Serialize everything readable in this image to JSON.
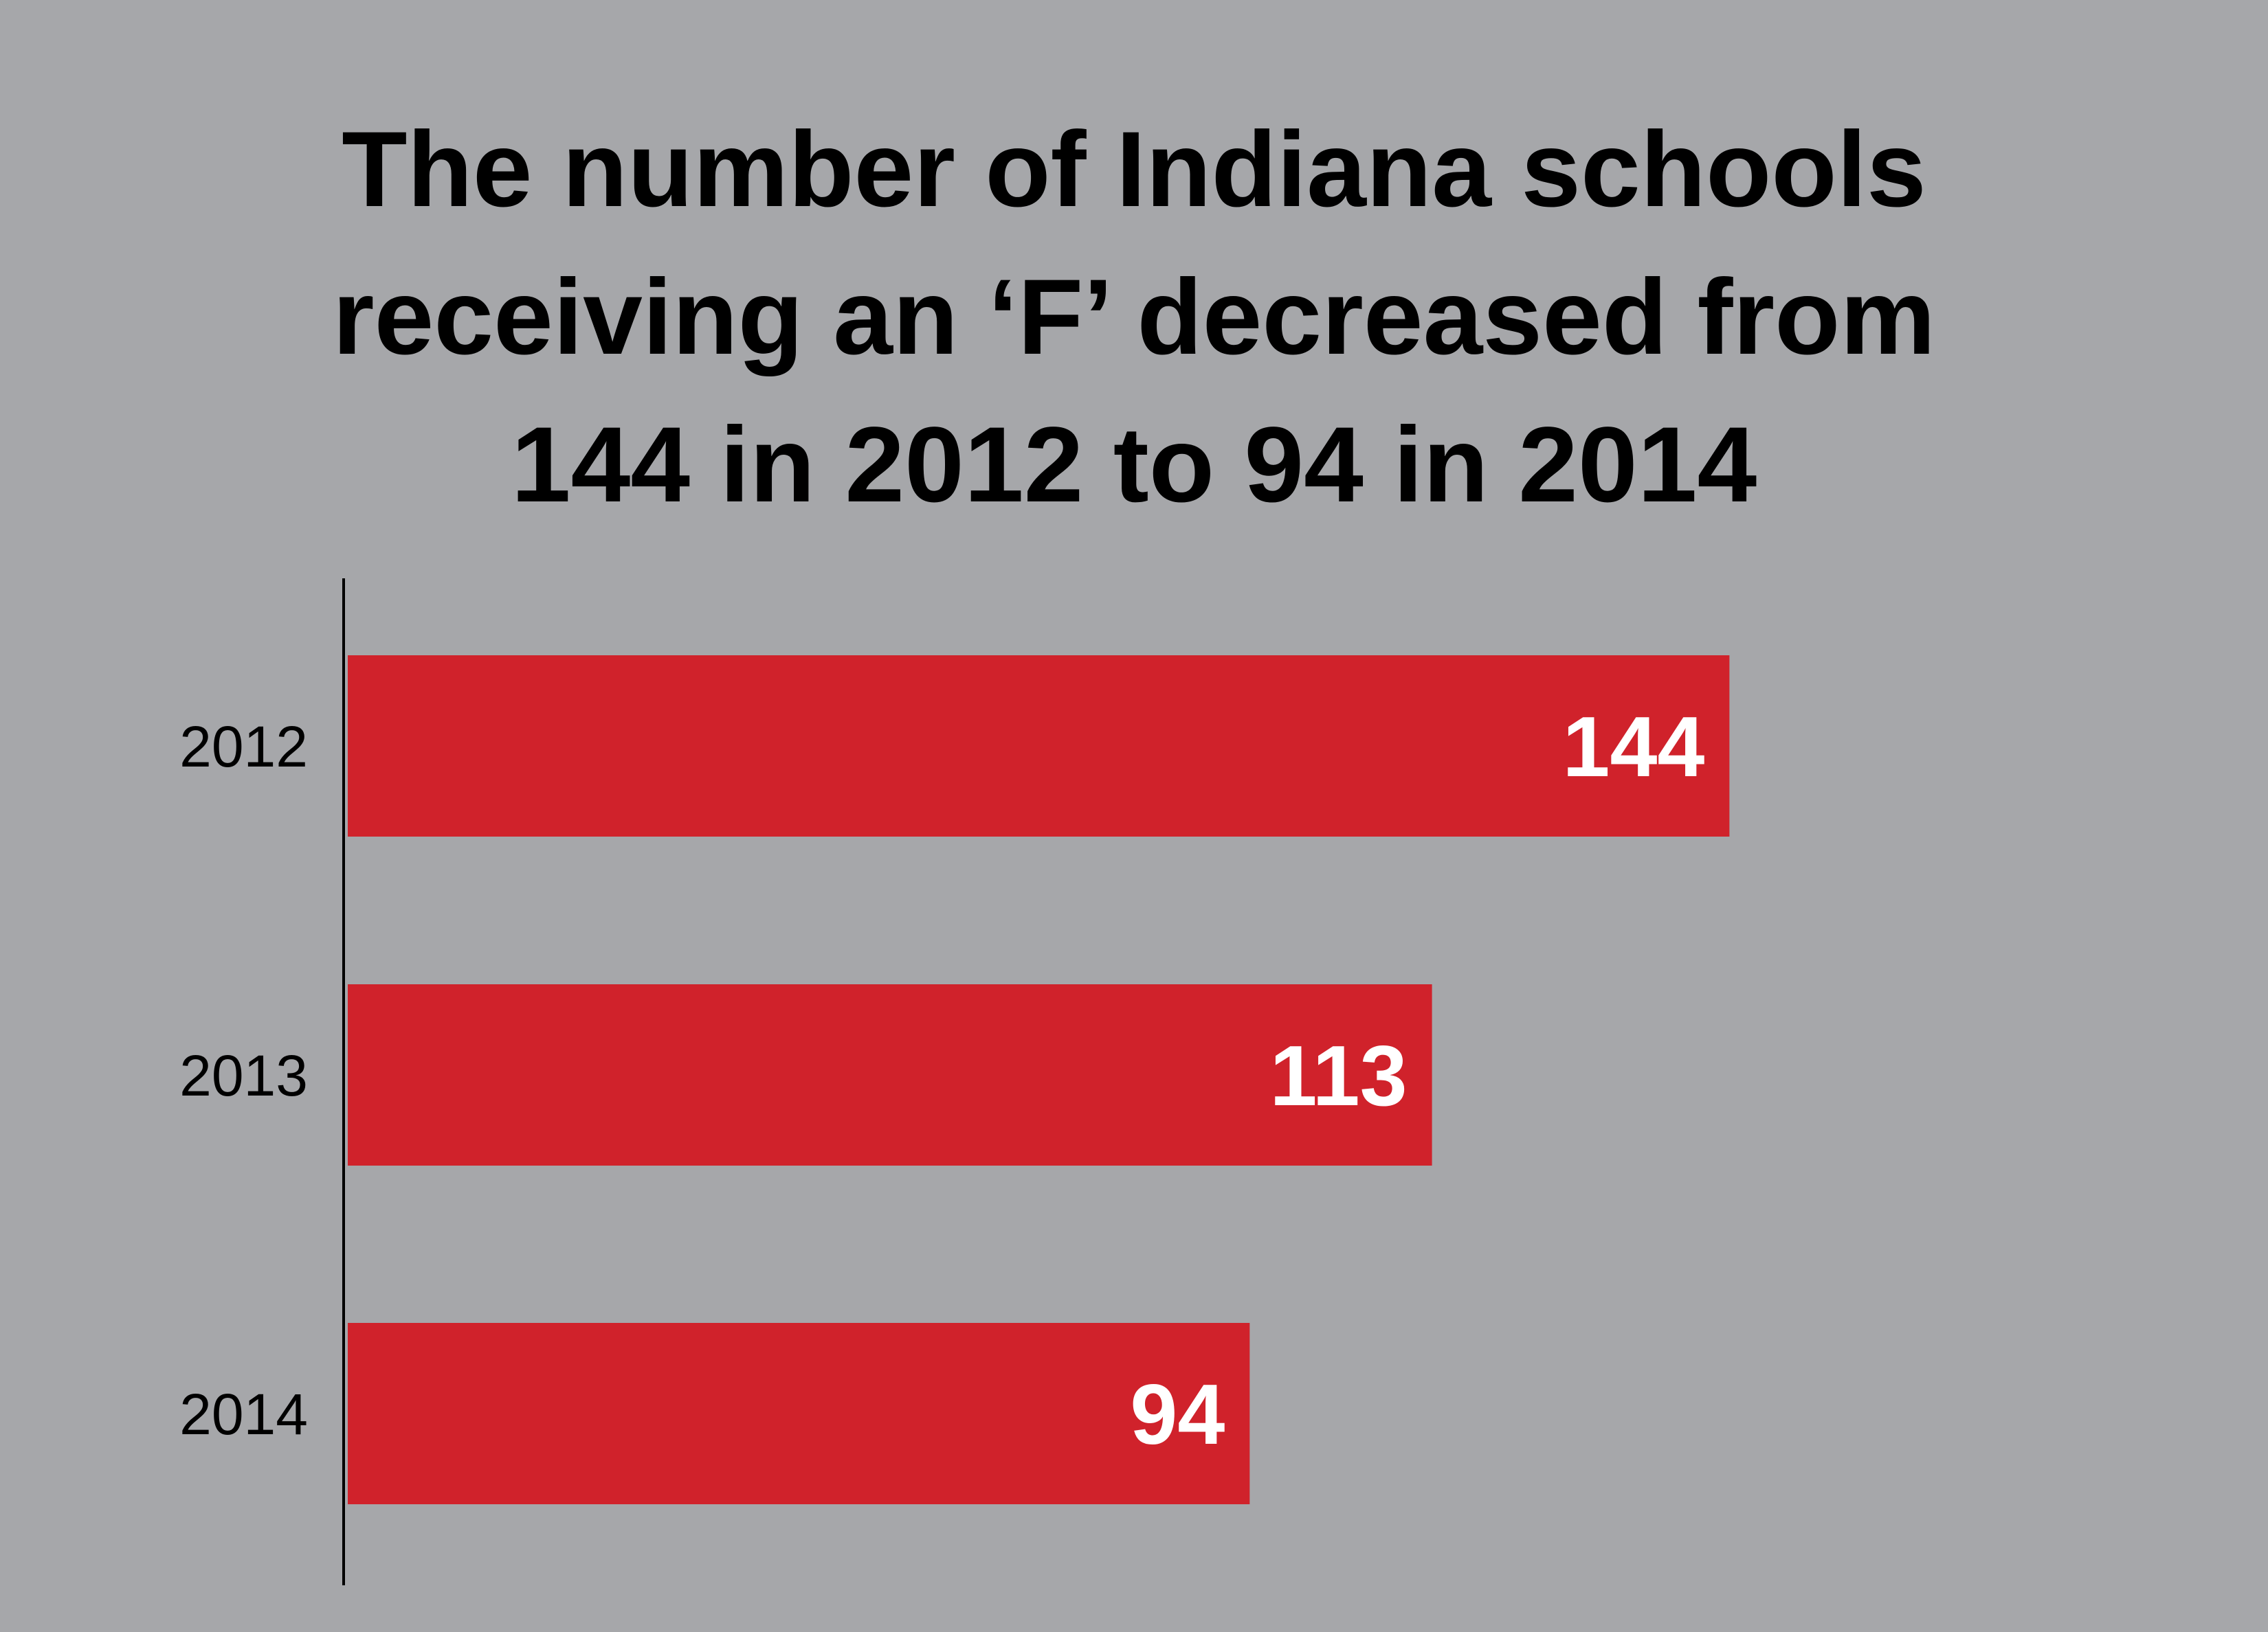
{
  "title_lines": [
    "The number of Indiana schools",
    "receiving an ‘F’ decreased from",
    "144 in 2012 to 94 in 2014"
  ],
  "colors": {
    "background": "#a6a7aa",
    "bar": "#d0222b",
    "bar_label": "#ffffff",
    "axis": "#000000",
    "title": "#000000"
  },
  "chart_data": {
    "type": "bar",
    "orientation": "horizontal",
    "title": "The number of Indiana schools receiving an ‘F’ decreased from 144 in 2012 to 94 in 2014",
    "categories": [
      "2012",
      "2013",
      "2014"
    ],
    "values": [
      144,
      113,
      94
    ],
    "data_labels": [
      "144",
      "113",
      "94"
    ],
    "xlabel": "",
    "ylabel": "",
    "xlim": [
      0,
      158.8
    ],
    "grid": false,
    "legend": "none"
  }
}
